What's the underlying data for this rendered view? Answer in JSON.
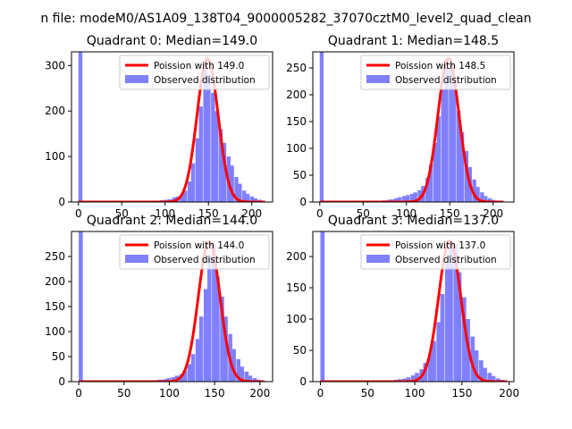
{
  "figure": {
    "suptitle": "n file: modeM0/AS1A09_138T04_9000005282_37070cztM0_level2_quad_clean"
  },
  "chart_data": [
    {
      "type": "bar",
      "title": "Quadrant 0: Median=149.0",
      "xlim": [
        -8,
        224
      ],
      "ylim": [
        0,
        330
      ],
      "xticks": [
        0,
        50,
        100,
        150,
        200
      ],
      "yticks": [
        0,
        100,
        200,
        300
      ],
      "legend": {
        "location": "upper-right",
        "entries": [
          "Poission with 149.0",
          "Observed distribution"
        ]
      },
      "histogram": {
        "name": "Observed distribution",
        "color": "#8080ff",
        "bin_width": 4.5,
        "bins": [
          [
            0,
            330
          ],
          [
            81,
            2
          ],
          [
            85,
            2
          ],
          [
            90,
            3
          ],
          [
            94,
            4
          ],
          [
            99,
            5
          ],
          [
            103,
            6
          ],
          [
            108,
            10
          ],
          [
            112,
            12
          ],
          [
            117,
            15
          ],
          [
            121,
            25
          ],
          [
            126,
            45
          ],
          [
            130,
            85
          ],
          [
            135,
            140
          ],
          [
            139,
            210
          ],
          [
            144,
            300
          ],
          [
            148,
            280
          ],
          [
            153,
            240
          ],
          [
            157,
            200
          ],
          [
            162,
            160
          ],
          [
            166,
            130
          ],
          [
            171,
            100
          ],
          [
            175,
            80
          ],
          [
            180,
            55
          ],
          [
            184,
            40
          ],
          [
            189,
            25
          ],
          [
            193,
            18
          ],
          [
            198,
            12
          ],
          [
            202,
            8
          ],
          [
            207,
            5
          ],
          [
            211,
            3
          ]
        ]
      },
      "poisson": {
        "name": "Poission with 149.0",
        "color": "#ff0000",
        "mean": 149.0,
        "peak": 315,
        "x_range": [
          0,
          215
        ]
      }
    },
    {
      "type": "bar",
      "title": "Quadrant 1: Median=148.5",
      "xlim": [
        -8,
        224
      ],
      "ylim": [
        0,
        280
      ],
      "xticks": [
        0,
        50,
        100,
        150,
        200
      ],
      "yticks": [
        0,
        50,
        100,
        150,
        200,
        250
      ],
      "legend": {
        "location": "upper-right",
        "entries": [
          "Poission with 148.5",
          "Observed distribution"
        ]
      },
      "histogram": {
        "name": "Observed distribution",
        "color": "#8080ff",
        "bin_width": 4.5,
        "bins": [
          [
            0,
            280
          ],
          [
            63,
            2
          ],
          [
            68,
            2
          ],
          [
            72,
            3
          ],
          [
            77,
            4
          ],
          [
            81,
            5
          ],
          [
            86,
            7
          ],
          [
            90,
            9
          ],
          [
            95,
            11
          ],
          [
            99,
            13
          ],
          [
            104,
            15
          ],
          [
            108,
            18
          ],
          [
            113,
            22
          ],
          [
            117,
            30
          ],
          [
            122,
            45
          ],
          [
            126,
            70
          ],
          [
            131,
            110
          ],
          [
            135,
            160
          ],
          [
            140,
            210
          ],
          [
            144,
            250
          ],
          [
            149,
            265
          ],
          [
            153,
            220
          ],
          [
            158,
            170
          ],
          [
            162,
            130
          ],
          [
            167,
            95
          ],
          [
            171,
            65
          ],
          [
            176,
            42
          ],
          [
            180,
            28
          ],
          [
            185,
            18
          ],
          [
            189,
            11
          ],
          [
            194,
            7
          ],
          [
            198,
            4
          ],
          [
            203,
            2
          ]
        ]
      },
      "poisson": {
        "name": "Poission with 148.5",
        "color": "#ff0000",
        "mean": 148.5,
        "peak": 268,
        "x_range": [
          0,
          212
        ]
      }
    },
    {
      "type": "bar",
      "title": "Quadrant 2: Median=144.0",
      "xlim": [
        -8,
        214
      ],
      "ylim": [
        0,
        300
      ],
      "xticks": [
        0,
        50,
        100,
        150,
        200
      ],
      "yticks": [
        0,
        50,
        100,
        150,
        200,
        250
      ],
      "legend": {
        "location": "upper-right",
        "entries": [
          "Poission with 144.0",
          "Observed distribution"
        ]
      },
      "histogram": {
        "name": "Observed distribution",
        "color": "#8080ff",
        "bin_width": 4.5,
        "bins": [
          [
            0,
            300
          ],
          [
            79,
            2
          ],
          [
            84,
            3
          ],
          [
            88,
            4
          ],
          [
            93,
            5
          ],
          [
            97,
            7
          ],
          [
            102,
            9
          ],
          [
            106,
            12
          ],
          [
            111,
            15
          ],
          [
            115,
            22
          ],
          [
            120,
            35
          ],
          [
            124,
            55
          ],
          [
            129,
            85
          ],
          [
            133,
            130
          ],
          [
            138,
            185
          ],
          [
            142,
            250
          ],
          [
            147,
            275
          ],
          [
            151,
            210
          ],
          [
            156,
            170
          ],
          [
            160,
            130
          ],
          [
            165,
            95
          ],
          [
            169,
            65
          ],
          [
            174,
            45
          ],
          [
            178,
            30
          ],
          [
            183,
            20
          ],
          [
            187,
            12
          ],
          [
            192,
            7
          ],
          [
            196,
            4
          ],
          [
            201,
            2
          ]
        ]
      },
      "poisson": {
        "name": "Poission with 144.0",
        "color": "#ff0000",
        "mean": 144.0,
        "peak": 280,
        "x_range": [
          0,
          205
        ]
      }
    },
    {
      "type": "bar",
      "title": "Quadrant 3: Median=137.0",
      "xlim": [
        -8,
        205
      ],
      "ylim": [
        0,
        240
      ],
      "xticks": [
        0,
        50,
        100,
        150,
        200
      ],
      "yticks": [
        0,
        50,
        100,
        150,
        200
      ],
      "legend": {
        "location": "upper-right",
        "entries": [
          "Poission with 137.0",
          "Observed distribution"
        ]
      },
      "histogram": {
        "name": "Observed distribution",
        "color": "#8080ff",
        "bin_width": 4.5,
        "bins": [
          [
            0,
            240
          ],
          [
            73,
            2
          ],
          [
            78,
            3
          ],
          [
            82,
            4
          ],
          [
            87,
            5
          ],
          [
            91,
            7
          ],
          [
            96,
            10
          ],
          [
            100,
            14
          ],
          [
            105,
            20
          ],
          [
            109,
            30
          ],
          [
            114,
            45
          ],
          [
            118,
            65
          ],
          [
            123,
            95
          ],
          [
            127,
            140
          ],
          [
            132,
            190
          ],
          [
            136,
            225
          ],
          [
            141,
            220
          ],
          [
            145,
            175
          ],
          [
            150,
            135
          ],
          [
            154,
            100
          ],
          [
            159,
            72
          ],
          [
            163,
            50
          ],
          [
            168,
            34
          ],
          [
            172,
            22
          ],
          [
            177,
            14
          ],
          [
            181,
            9
          ],
          [
            186,
            5
          ],
          [
            190,
            3
          ]
        ]
      },
      "poisson": {
        "name": "Poission with 137.0",
        "color": "#ff0000",
        "mean": 137.0,
        "peak": 225,
        "x_range": [
          0,
          198
        ]
      }
    }
  ]
}
